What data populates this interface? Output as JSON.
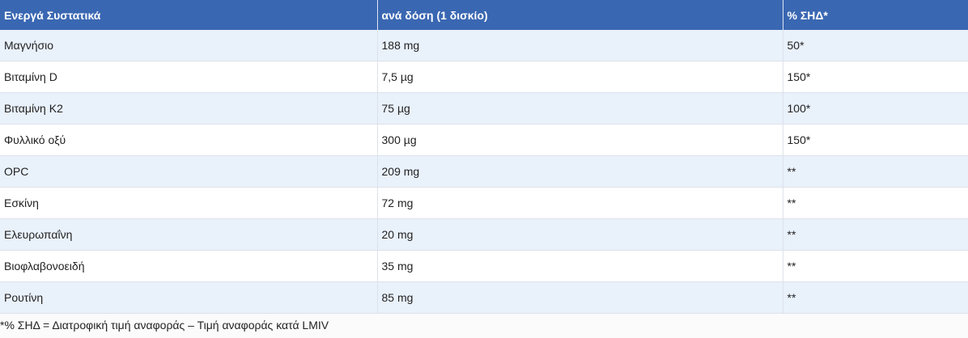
{
  "table": {
    "headers": [
      "Ενεργά Συστατικά",
      "ανά δόση (1 δισκίο)",
      "% ΣΗΔ*"
    ],
    "rows": [
      [
        "Μαγνήσιο",
        "188 mg",
        "50*"
      ],
      [
        "Βιταμίνη D",
        "7,5 µg",
        "150*"
      ],
      [
        "Βιταμίνη K2",
        "75 µg",
        "100*"
      ],
      [
        "Φυλλικό οξύ",
        "300 µg",
        "150*"
      ],
      [
        "OPC",
        "209 mg",
        "**"
      ],
      [
        "Εσκίνη",
        "72 mg",
        "**"
      ],
      [
        "Ελευρωπαΐνη",
        "20 mg",
        "**"
      ],
      [
        "Βιοφλαβονοειδή",
        "35 mg",
        "**"
      ],
      [
        "Ρουτίνη",
        "85 mg",
        "**"
      ]
    ]
  },
  "footnote": "*% ΣΗΔ = Διατροφική τιμή αναφοράς – Τιμή αναφοράς κατά LMIV"
}
